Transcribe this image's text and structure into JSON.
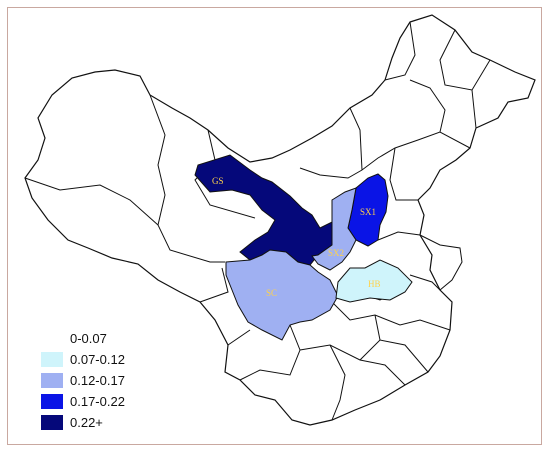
{
  "colors": {
    "border": "#111111",
    "frame": "#c9a8a0",
    "background": "#ffffff"
  },
  "legend": {
    "items": [
      {
        "label": "0-0.07",
        "color": "#ffffff"
      },
      {
        "label": "0.07-0.12",
        "color": "#cff4fb"
      },
      {
        "label": "0.12-0.17",
        "color": "#9fb0f2"
      },
      {
        "label": "0.17-0.22",
        "color": "#0a14e6"
      },
      {
        "label": "0.22+",
        "color": "#05087a"
      }
    ]
  },
  "regions": {
    "GS": {
      "label": "GS",
      "color": "#05087a",
      "label_color": "#ffd24a"
    },
    "SX1": {
      "label": "SX1",
      "color": "#0a14e6",
      "label_color": "#ffd24a"
    },
    "SX2": {
      "label": "SX2",
      "color": "#9fb0f2",
      "label_color": "#ffd24a"
    },
    "SC": {
      "label": "SC",
      "color": "#9fb0f2",
      "label_color": "#ffd24a"
    },
    "HB": {
      "label": "HB",
      "color": "#cff4fb",
      "label_color": "#ffd24a"
    }
  }
}
